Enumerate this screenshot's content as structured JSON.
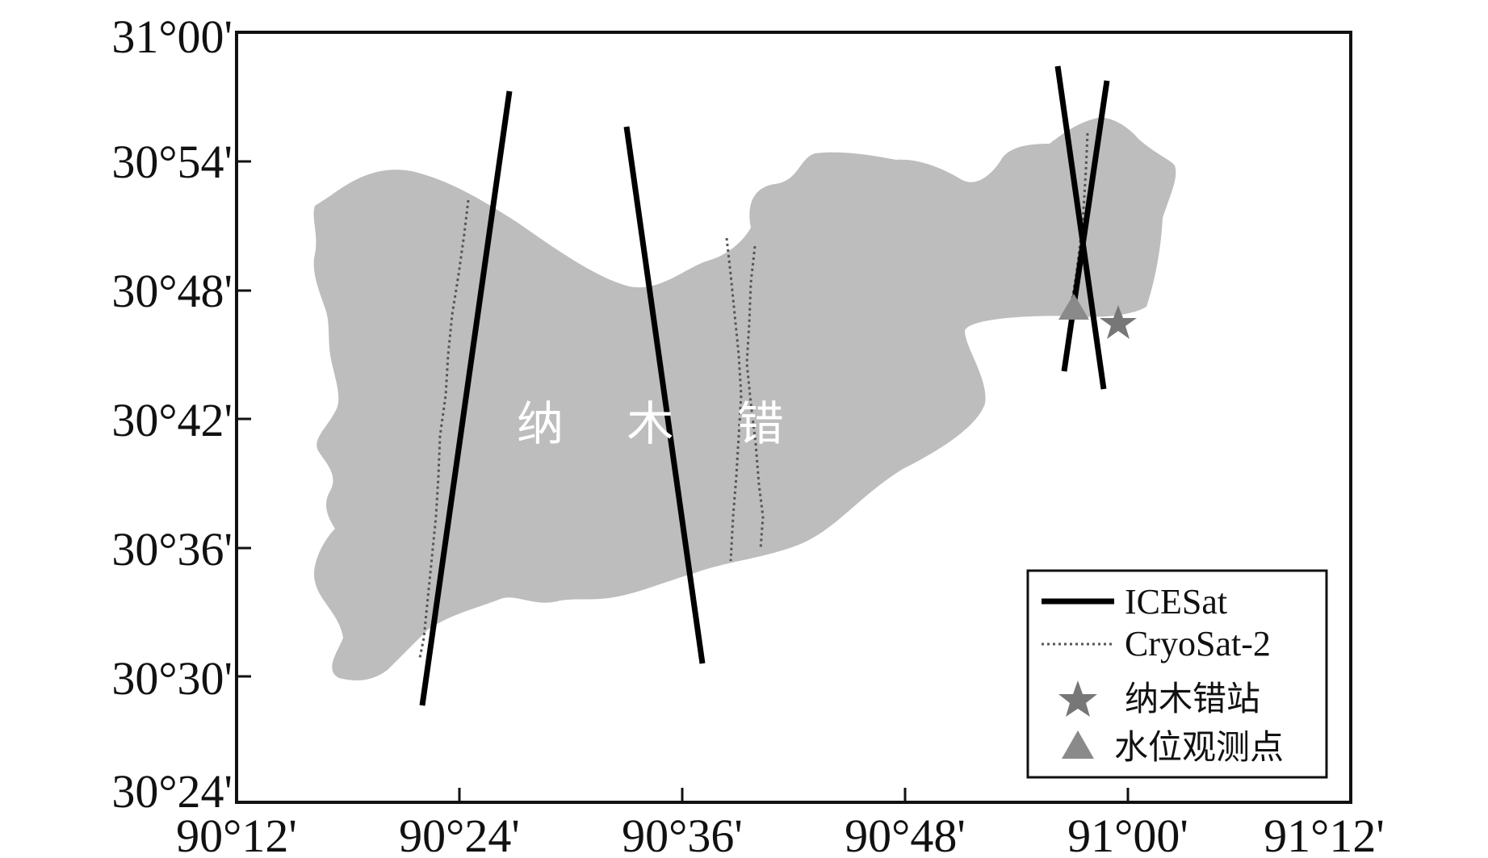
{
  "axes": {
    "x_tick_labels": [
      "90°12'",
      "90°24'",
      "90°36'",
      "90°48'",
      "91°00'",
      "91°12'"
    ],
    "y_tick_labels": [
      "31°00'",
      "30°54'",
      "30°48'",
      "30°42'",
      "30°36'",
      "30°30'",
      "30°24'"
    ]
  },
  "lake": {
    "label": "纳 木 错",
    "fill_color": "#bdbdbd"
  },
  "tracks": {
    "icesat_color": "#000000",
    "cryosat_color": "#555555"
  },
  "markers": {
    "station_color": "#777777",
    "water_level_color": "#8a8a8a"
  },
  "legend": {
    "icesat": "ICESat",
    "cryosat": "CryoSat-2",
    "station": "纳木错站",
    "water_level": "水位观测点"
  }
}
